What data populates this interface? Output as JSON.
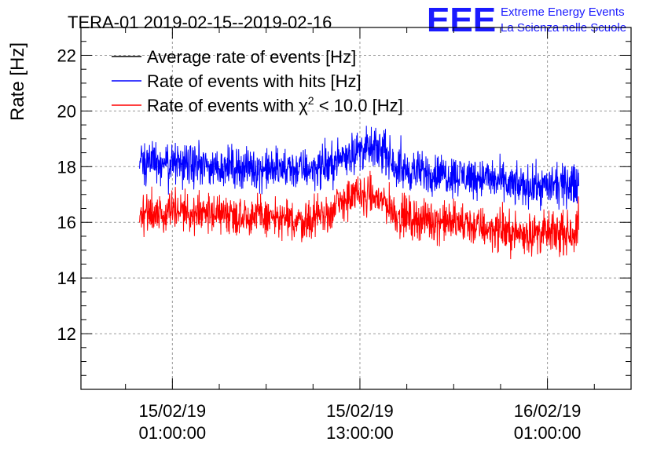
{
  "chart_data": {
    "type": "line",
    "title": "TERA-01 2019-02-15--2019-02-16",
    "xlabel": "",
    "ylabel": "Rate [Hz]",
    "ylim": [
      10,
      23
    ],
    "xlim_hours": [
      -4.85,
      30.35
    ],
    "grid": true,
    "y_ticks": [
      12,
      14,
      16,
      18,
      20,
      22
    ],
    "x_ticks": [
      {
        "hour": 1,
        "date": "15/02/19",
        "time": "01:00:00"
      },
      {
        "hour": 13,
        "date": "15/02/19",
        "time": "13:00:00"
      },
      {
        "hour": 25,
        "date": "16/02/19",
        "time": "01:00:00"
      }
    ],
    "legend_position": "top-left",
    "x_range_hours": [
      -1.1,
      27.0
    ],
    "series": [
      {
        "name": "Average rate of events [Hz]",
        "color": "#000000",
        "visible": false,
        "values": []
      },
      {
        "name": "Rate of events with hits [Hz]",
        "color": "#0000ff",
        "noise_amplitude": 0.55,
        "hours": [
          -1.1,
          1,
          3,
          5,
          7,
          9,
          11,
          12,
          13,
          14.5,
          15.5,
          17,
          19,
          21,
          23,
          25,
          26,
          27.0
        ],
        "values": [
          18.1,
          18.1,
          18.0,
          18.0,
          17.9,
          17.9,
          18.0,
          18.4,
          18.6,
          18.6,
          17.9,
          17.8,
          17.7,
          17.6,
          17.3,
          17.3,
          17.3,
          17.4
        ]
      },
      {
        "name": "Rate of events with χ² < 10.0 [Hz]",
        "color": "#ff0000",
        "noise_amplitude": 0.55,
        "hours": [
          -1.1,
          1,
          3,
          5,
          7,
          9,
          11,
          12,
          13,
          14.5,
          15.5,
          17,
          19,
          21,
          23,
          25,
          26,
          27.0
        ],
        "values": [
          16.3,
          16.4,
          16.3,
          16.3,
          16.2,
          16.0,
          16.3,
          16.8,
          17.0,
          16.8,
          16.2,
          16.1,
          16.0,
          15.8,
          15.6,
          15.6,
          15.6,
          15.7
        ]
      }
    ]
  },
  "legend": {
    "item_average": "Average rate of events [Hz]",
    "item_hits": "Rate of events with hits [Hz]",
    "item_chi2_prefix": "Rate of events with ",
    "item_chi2_symbol": "χ",
    "item_chi2_exp": "2",
    "item_chi2_suffix": " < 10.0 [Hz]"
  },
  "logo": {
    "letters": "EEE",
    "line1": "Extreme Energy Events",
    "line2": "La Scienza nelle Scuole",
    "color": "#1a1aff"
  }
}
